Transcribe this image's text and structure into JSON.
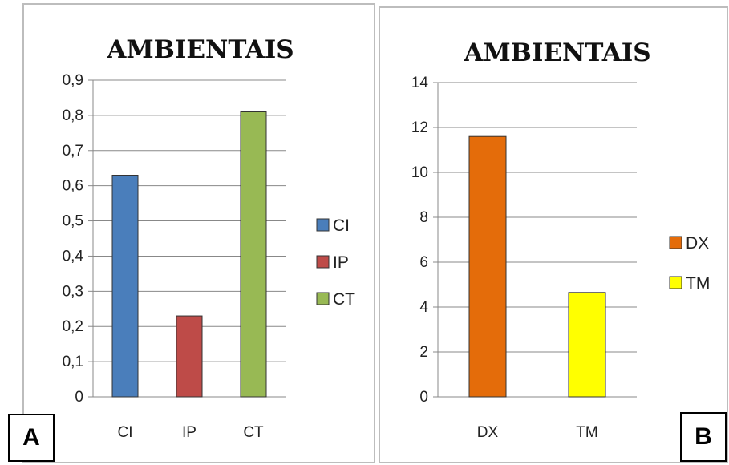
{
  "chart_data": [
    {
      "type": "bar",
      "title": "AMBIENTAIS",
      "categories": [
        "CI",
        "IP",
        "CT"
      ],
      "values": [
        0.63,
        0.23,
        0.81
      ],
      "yticks": [
        "0",
        "0,1",
        "0,2",
        "0,3",
        "0,4",
        "0,5",
        "0,6",
        "0,7",
        "0,8",
        "0,9"
      ],
      "ylim": [
        0,
        0.9
      ],
      "grid": true,
      "legend": [
        {
          "name": "CI",
          "color": "#4a7ebb"
        },
        {
          "name": "IP",
          "color": "#be4b48"
        },
        {
          "name": "CT",
          "color": "#98b954"
        }
      ],
      "legend_position": "right",
      "colors": [
        "#4a7ebb",
        "#be4b48",
        "#98b954"
      ],
      "panel_label": "A"
    },
    {
      "type": "bar",
      "title": "AMBIENTAIS",
      "categories": [
        "DX",
        "TM"
      ],
      "values": [
        11.6,
        4.65
      ],
      "yticks": [
        "0",
        "2",
        "4",
        "6",
        "8",
        "10",
        "12",
        "14"
      ],
      "ylim": [
        0,
        14
      ],
      "grid": true,
      "legend": [
        {
          "name": "DX",
          "color": "#e46c0a"
        },
        {
          "name": "TM",
          "color": "#ffff00"
        }
      ],
      "legend_position": "right",
      "colors": [
        "#e46c0a",
        "#ffff00"
      ],
      "panel_label": "B"
    }
  ]
}
